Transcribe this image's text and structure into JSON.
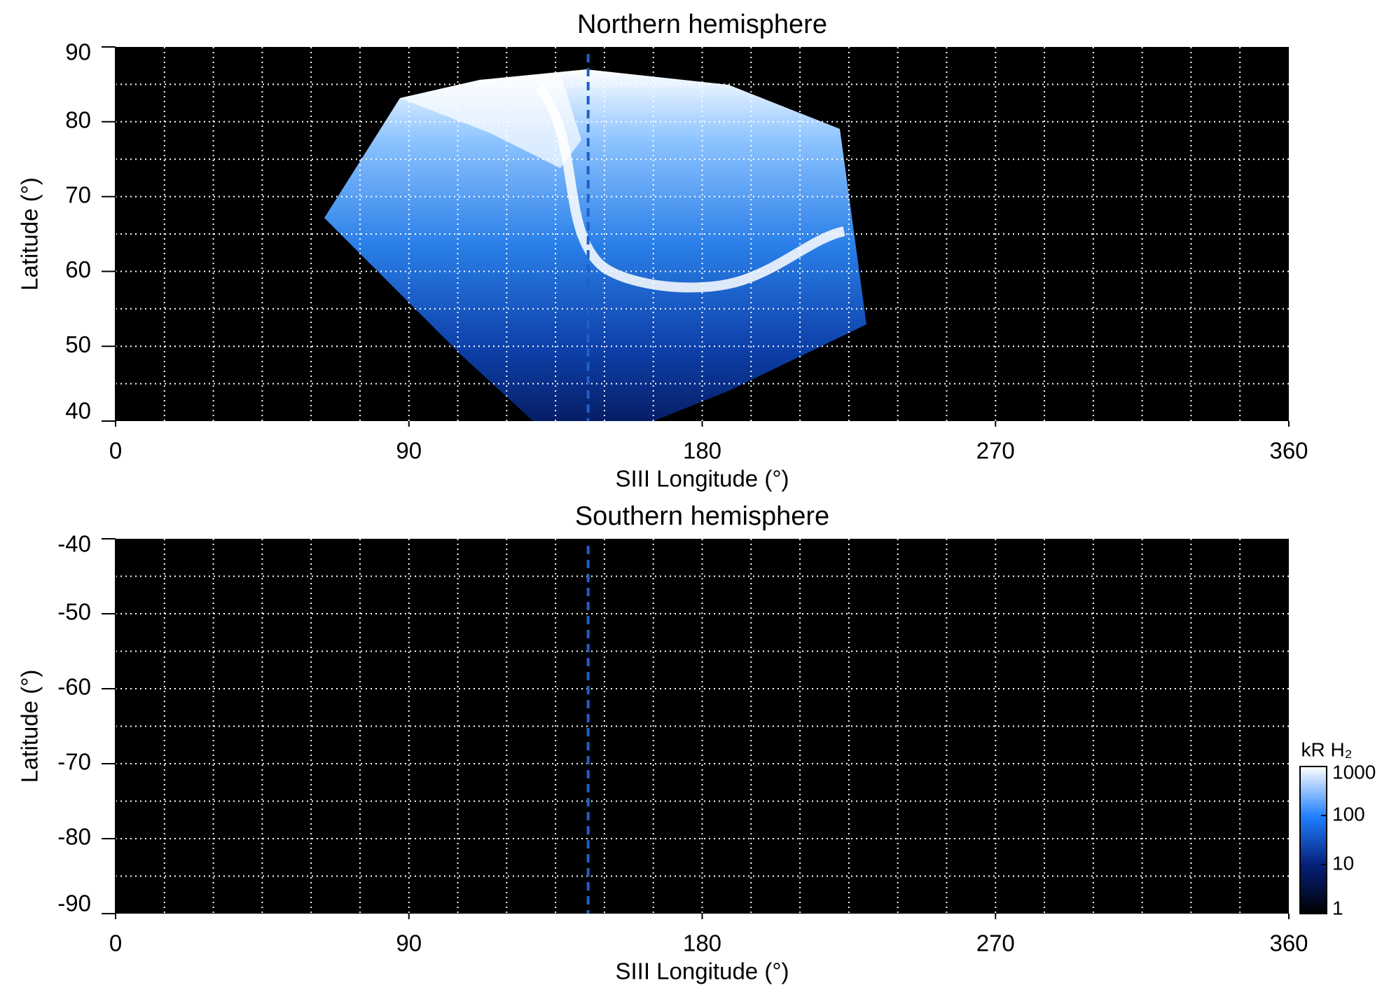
{
  "chart_data": [
    {
      "type": "heatmap",
      "title": "Northern hemisphere",
      "xlabel": "SIII Longitude (°)",
      "ylabel": "Latitude (°)",
      "xlim": [
        0,
        360
      ],
      "ylim": [
        40,
        90
      ],
      "xticks": [
        0,
        90,
        180,
        270,
        360
      ],
      "yticks": [
        40,
        50,
        60,
        70,
        80,
        90
      ],
      "xgrid": [
        15,
        30,
        45,
        60,
        75,
        90,
        105,
        120,
        135,
        150,
        165,
        180,
        195,
        210,
        225,
        240,
        255,
        270,
        285,
        300,
        315,
        330,
        345
      ],
      "ygrid": [
        45,
        50,
        55,
        60,
        65,
        70,
        75,
        80,
        85
      ],
      "marker_x": 145,
      "marker_color": "#1f5fc8"
    },
    {
      "type": "heatmap",
      "title": "Southern hemisphere",
      "xlabel": "SIII Longitude (°)",
      "ylabel": "Latitude (°)",
      "xlim": [
        0,
        360
      ],
      "ylim": [
        -90,
        -40
      ],
      "xticks": [
        0,
        90,
        180,
        270,
        360
      ],
      "yticks": [
        -90,
        -80,
        -70,
        -60,
        -50,
        -40
      ],
      "xgrid": [
        15,
        30,
        45,
        60,
        75,
        90,
        105,
        120,
        135,
        150,
        165,
        180,
        195,
        210,
        225,
        240,
        255,
        270,
        285,
        300,
        315,
        330,
        345
      ],
      "ygrid": [
        -85,
        -80,
        -75,
        -70,
        -65,
        -60,
        -55,
        -50,
        -45
      ],
      "marker_x": 145,
      "marker_color": "#1f5fc8",
      "colorbar": {
        "label": "kR H₂",
        "lim": [
          1,
          1000
        ],
        "ticks": [
          1,
          10,
          100,
          1000
        ],
        "log": true
      }
    }
  ]
}
